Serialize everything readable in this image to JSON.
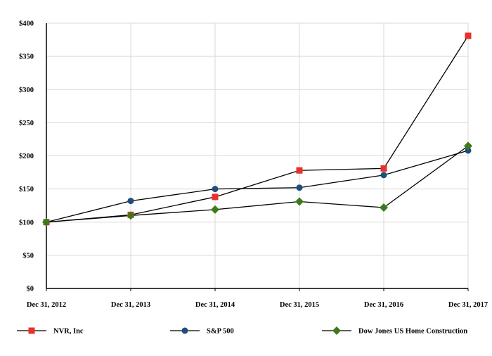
{
  "chart_data": {
    "type": "line",
    "categories": [
      "Dec 31, 2012",
      "Dec 31, 2013",
      "Dec 31, 2014",
      "Dec 31, 2015",
      "Dec 31, 2016",
      "Dec 31, 2017"
    ],
    "ylim": [
      0,
      400
    ],
    "yticks": [
      0,
      50,
      100,
      150,
      200,
      250,
      300,
      350,
      400
    ],
    "ytick_labels": [
      "$0",
      "$50",
      "$100",
      "$150",
      "$200",
      "$250",
      "$300",
      "$350",
      "$400"
    ],
    "grid": true,
    "legend_position": "bottom",
    "series": [
      {
        "name": "NVR, Inc",
        "marker": "square",
        "color": "#e8312c",
        "values": [
          100,
          111,
          138,
          178,
          181,
          381
        ]
      },
      {
        "name": "S&P 500",
        "marker": "circle",
        "color": "#1f4e79",
        "values": [
          100,
          132,
          150,
          152,
          171,
          208
        ]
      },
      {
        "name": "Dow Jones US Home Construction",
        "marker": "diamond",
        "color": "#3e7a1c",
        "values": [
          100,
          110,
          119,
          131,
          122,
          215
        ]
      }
    ]
  }
}
